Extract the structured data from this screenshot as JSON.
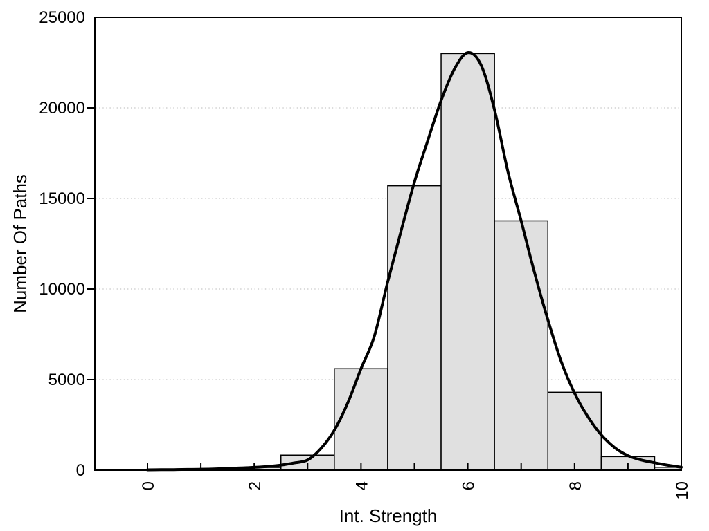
{
  "figure": {
    "background": "#ffffff"
  },
  "chart_data": {
    "type": "bar",
    "subtype": "histogram-with-density-curve",
    "title": "",
    "xlabel": "Int. Strength",
    "ylabel": "Number Of Paths",
    "xlim": [
      -1,
      10
    ],
    "ylim": [
      0,
      25000
    ],
    "grid": "horizontal-dotted-at-y-ticks",
    "legend": "none",
    "axes": {
      "x_major_ticks": [
        0,
        2,
        4,
        6,
        8,
        10
      ],
      "x_major_tick_labels": [
        "0",
        "2",
        "4",
        "6",
        "8",
        "10"
      ],
      "x_minor_ticks": [
        1,
        3,
        5,
        7,
        9
      ],
      "x_tick_label_rotation_deg": -90,
      "y_ticks": [
        0,
        5000,
        10000,
        15000,
        20000,
        25000
      ],
      "y_tick_labels": [
        "0",
        "5000",
        "10000",
        "15000",
        "20000",
        "25000"
      ],
      "y_gridline_values": [
        5000,
        10000,
        15000,
        20000
      ]
    },
    "colors": {
      "bar_fill": "#e0e0e0",
      "bar_edge": "#000000",
      "curve": "#000000",
      "frame": "#000000",
      "gridline": "#c8c8c8",
      "text": "#000000"
    },
    "bins": {
      "bin_width": 1,
      "centers": [
        2,
        3,
        4,
        5,
        6,
        7,
        8,
        9,
        10
      ],
      "counts": [
        150,
        830,
        5600,
        15700,
        23000,
        13760,
        4300,
        750,
        160
      ],
      "note_last_bin_clipped_at_x": 10
    },
    "density_curve": {
      "x": [
        0,
        0.25,
        0.5,
        0.75,
        1,
        1.25,
        1.5,
        1.75,
        2,
        2.25,
        2.5,
        2.75,
        3,
        3.25,
        3.5,
        3.75,
        4,
        4.25,
        4.5,
        4.75,
        5,
        5.25,
        5.5,
        5.75,
        6,
        6.25,
        6.5,
        6.75,
        7,
        7.25,
        7.5,
        7.75,
        8,
        8.25,
        8.5,
        8.75,
        9,
        9.25,
        9.5,
        9.75,
        10
      ],
      "y": [
        20,
        25,
        32,
        41,
        52,
        68,
        95,
        122,
        155,
        205,
        280,
        400,
        560,
        1200,
        2200,
        3700,
        5600,
        7400,
        10400,
        13200,
        15900,
        18200,
        20400,
        22150,
        23050,
        22350,
        19900,
        16500,
        13760,
        10900,
        8300,
        6000,
        4250,
        2950,
        1950,
        1250,
        800,
        560,
        410,
        270,
        165
      ],
      "peak_x": 6.0,
      "peak_y": 23050
    }
  }
}
